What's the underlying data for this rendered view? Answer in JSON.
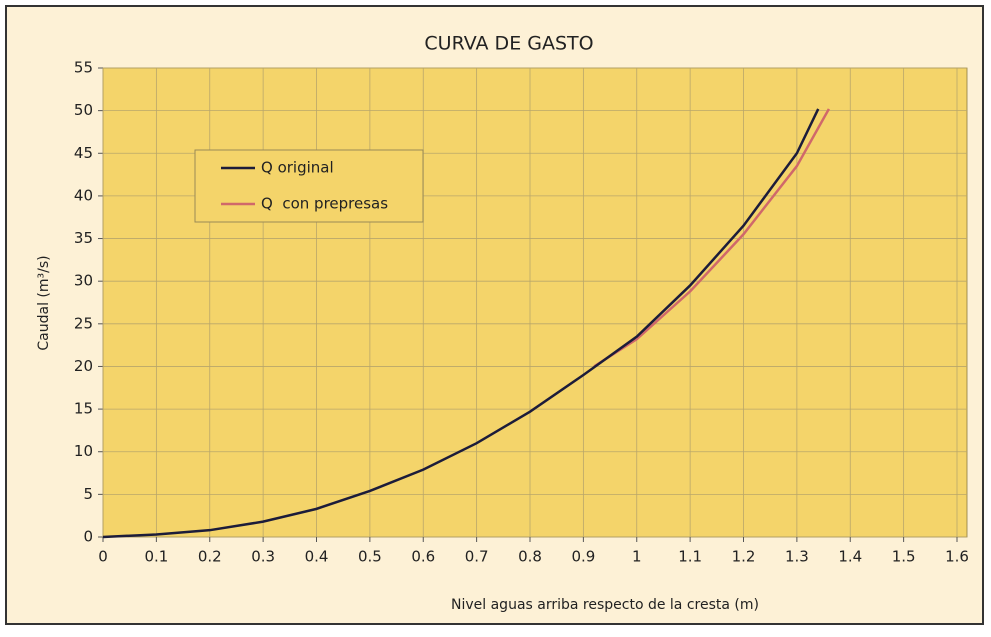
{
  "chart_data": {
    "type": "line",
    "title": "CURVA DE GASTO",
    "x_label": "Nivel aguas arriba respecto de la cresta (m)",
    "y_label": "Caudal (m³/s)",
    "xlim": [
      0,
      1.6
    ],
    "xticks": [
      0,
      0.1,
      0.2,
      0.3,
      0.4,
      0.5,
      0.6,
      0.7,
      0.8,
      0.9,
      1,
      1.1,
      1.2,
      1.3,
      1.4,
      1.5,
      1.6
    ],
    "ylim": [
      0,
      55
    ],
    "yticks": [
      0,
      5,
      10,
      15,
      20,
      25,
      30,
      35,
      40,
      45,
      50,
      55
    ],
    "grid": true,
    "legend": "upper left",
    "series": [
      {
        "name": "Q original",
        "color": "#1c1c3a",
        "x": [
          0,
          0.1,
          0.2,
          0.3,
          0.4,
          0.5,
          0.6,
          0.7,
          0.8,
          0.9,
          1.0,
          1.1,
          1.2,
          1.3,
          1.34
        ],
        "values": [
          0,
          0.3,
          0.8,
          1.8,
          3.3,
          5.4,
          7.9,
          11,
          14.7,
          19,
          23.5,
          29.5,
          36.5,
          45,
          50.2
        ]
      },
      {
        "name": "Q  con prepresas",
        "color": "#d0686a",
        "x": [
          0.92,
          1.0,
          1.1,
          1.2,
          1.3,
          1.36
        ],
        "values": [
          20,
          23.2,
          28.8,
          35.5,
          43.5,
          50.2
        ]
      }
    ]
  }
}
